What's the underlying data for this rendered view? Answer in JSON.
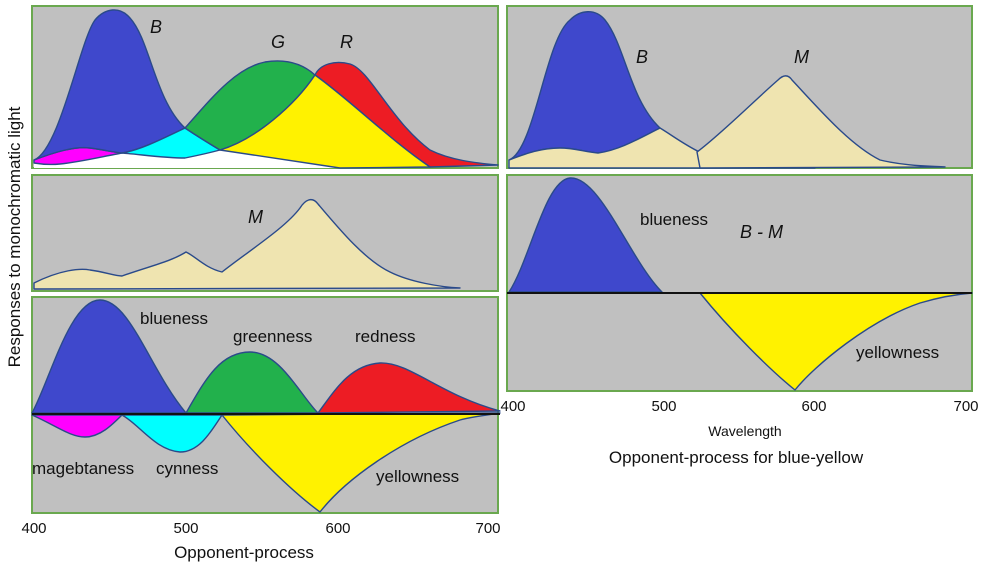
{
  "y_axis_label": "Responses to monochromatic light",
  "colors": {
    "panel_bg": "#c0c0c0",
    "panel_border": "#6aa84f",
    "blue": "#3f48cc",
    "green": "#22b14c",
    "red": "#ed1c24",
    "yellow": "#fff200",
    "magenta": "#ff00ff",
    "cyan": "#00ffff",
    "beige": "#efe4b0",
    "white": "#ffffff"
  },
  "left": {
    "top_panel": {
      "labels": {
        "b": "B",
        "g": "G",
        "r": "R"
      }
    },
    "middle_panel": {
      "labels": {
        "m": "M"
      }
    },
    "bottom_panel": {
      "labels": {
        "blueness": "blueness",
        "greenness": "greenness",
        "redness": "redness",
        "magentaness": "magebtaness",
        "cyanness": "cynness",
        "yellowness": "yellowness"
      }
    },
    "x_ticks": [
      "400",
      "500",
      "600",
      "700"
    ],
    "caption": "Opponent-process"
  },
  "right": {
    "top_panel": {
      "labels": {
        "b": "B",
        "m": "M"
      }
    },
    "bottom_panel": {
      "labels": {
        "blueness": "blueness",
        "b_minus_m": "B - M",
        "yellowness": "yellowness"
      }
    },
    "x_ticks": [
      "400",
      "500",
      "600",
      "700"
    ],
    "x_label": "Wavelength",
    "caption": "Opponent-process for blue-yellow"
  }
}
